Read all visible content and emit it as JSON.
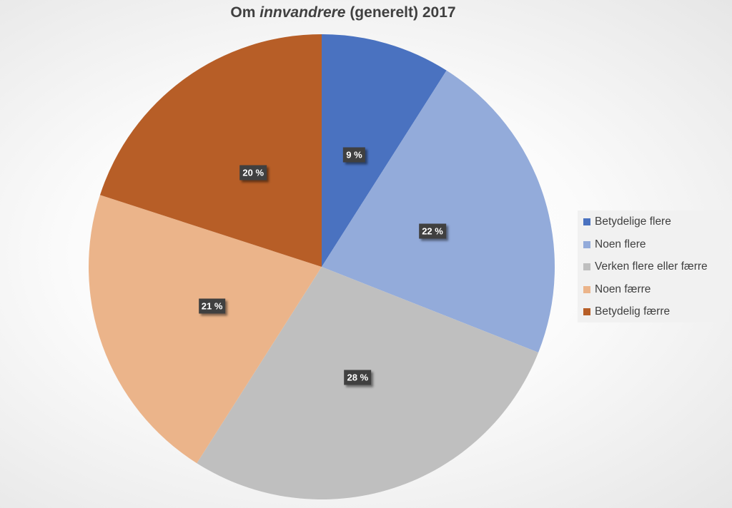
{
  "chart_data": {
    "type": "pie",
    "title_parts": [
      "Om ",
      "innvandrere",
      " (generelt) 2017"
    ],
    "start": "top",
    "direction": "clockwise",
    "legend_position": "right",
    "slices": [
      {
        "name": "Betydelige flere",
        "value": 9,
        "label": "9 %",
        "color": "#4a72c0"
      },
      {
        "name": "Noen flere",
        "value": 22,
        "label": "22 %",
        "color": "#93abda"
      },
      {
        "name": "Verken flere eller færre",
        "value": 28,
        "label": "28 %",
        "color": "#bfbfbf"
      },
      {
        "name": "Noen færre",
        "value": 21,
        "label": "21 %",
        "color": "#ebb48a"
      },
      {
        "name": "Betydelig færre",
        "value": 20,
        "label": "20 %",
        "color": "#b75e27"
      }
    ]
  }
}
